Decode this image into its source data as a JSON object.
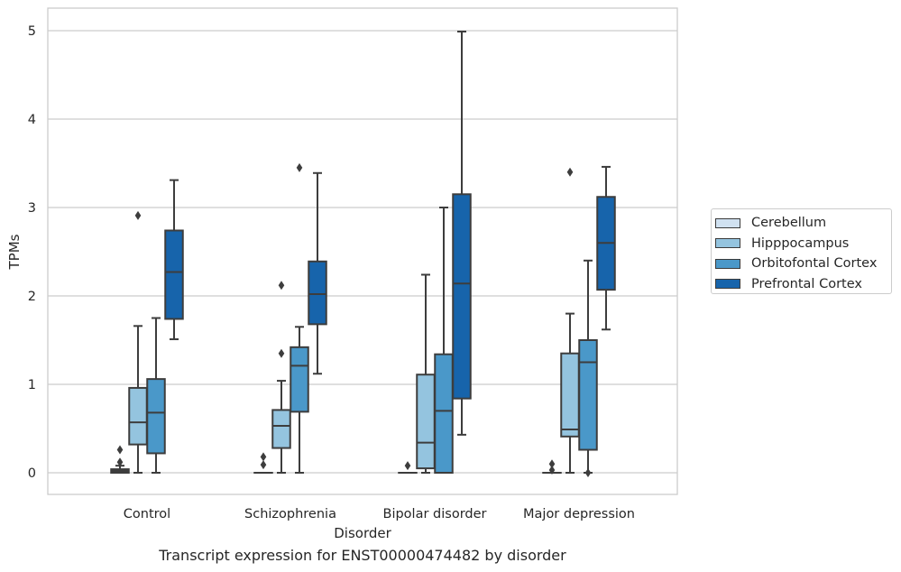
{
  "caption": "Transcript expression for ENST00000474482 by disorder",
  "chart_data": {
    "type": "box",
    "xlabel": "Disorder",
    "ylabel": "TPMs",
    "ylim": [
      -0.24,
      5.25
    ],
    "yticks": [
      0,
      1,
      2,
      3,
      4,
      5
    ],
    "grid": true,
    "legend_position": "right",
    "categories": [
      "Control",
      "Schizophrenia",
      "Bipolar disorder",
      "Major depression"
    ],
    "series": [
      {
        "name": "Cerebellum",
        "color": "#d0e1f1",
        "boxes": [
          {
            "whisker_low": 0,
            "q1": 0,
            "median": 0.02,
            "q3": 0.04,
            "whisker_high": 0.08,
            "outliers": [
              0.12,
              0.26
            ]
          },
          {
            "whisker_low": 0,
            "q1": 0,
            "median": 0,
            "q3": 0,
            "whisker_high": 0,
            "outliers": [
              0.09,
              0.18
            ]
          },
          {
            "whisker_low": 0,
            "q1": 0,
            "median": 0,
            "q3": 0,
            "whisker_high": 0,
            "outliers": [
              0.08
            ]
          },
          {
            "whisker_low": 0,
            "q1": 0,
            "median": 0,
            "q3": 0,
            "whisker_high": 0,
            "outliers": [
              0.03,
              0.1
            ]
          }
        ]
      },
      {
        "name": "Hipppocampus",
        "color": "#94c4df",
        "boxes": [
          {
            "whisker_low": 0,
            "q1": 0.32,
            "median": 0.57,
            "q3": 0.96,
            "whisker_high": 1.66,
            "outliers": [
              2.91
            ]
          },
          {
            "whisker_low": 0,
            "q1": 0.28,
            "median": 0.53,
            "q3": 0.71,
            "whisker_high": 1.04,
            "outliers": [
              1.35,
              2.12
            ]
          },
          {
            "whisker_low": 0,
            "q1": 0.05,
            "median": 0.34,
            "q3": 1.11,
            "whisker_high": 2.24,
            "outliers": []
          },
          {
            "whisker_low": 0,
            "q1": 0.41,
            "median": 0.49,
            "q3": 1.35,
            "whisker_high": 1.8,
            "outliers": [
              3.4
            ]
          }
        ]
      },
      {
        "name": "Orbitofontal Cortex",
        "color": "#4a98c9",
        "boxes": [
          {
            "whisker_low": 0,
            "q1": 0.22,
            "median": 0.68,
            "q3": 1.06,
            "whisker_high": 1.75,
            "outliers": []
          },
          {
            "whisker_low": 0,
            "q1": 0.69,
            "median": 1.21,
            "q3": 1.42,
            "whisker_high": 1.65,
            "outliers": [
              3.45
            ]
          },
          {
            "whisker_low": 0,
            "q1": 0,
            "median": 0.7,
            "q3": 1.34,
            "whisker_high": 3.0,
            "outliers": []
          },
          {
            "whisker_low": 0,
            "q1": 0.26,
            "median": 1.25,
            "q3": 1.5,
            "whisker_high": 2.4,
            "outliers": [
              0
            ]
          }
        ]
      },
      {
        "name": "Prefrontal Cortex",
        "color": "#1764ab",
        "boxes": [
          {
            "whisker_low": 1.51,
            "q1": 1.74,
            "median": 2.27,
            "q3": 2.74,
            "whisker_high": 3.31,
            "outliers": []
          },
          {
            "whisker_low": 1.12,
            "q1": 1.68,
            "median": 2.02,
            "q3": 2.39,
            "whisker_high": 3.39,
            "outliers": []
          },
          {
            "whisker_low": 0.43,
            "q1": 0.84,
            "median": 2.14,
            "q3": 3.15,
            "whisker_high": 4.99,
            "outliers": []
          },
          {
            "whisker_low": 1.62,
            "q1": 2.07,
            "median": 2.6,
            "q3": 3.12,
            "whisker_high": 3.46,
            "outliers": []
          }
        ]
      }
    ]
  }
}
